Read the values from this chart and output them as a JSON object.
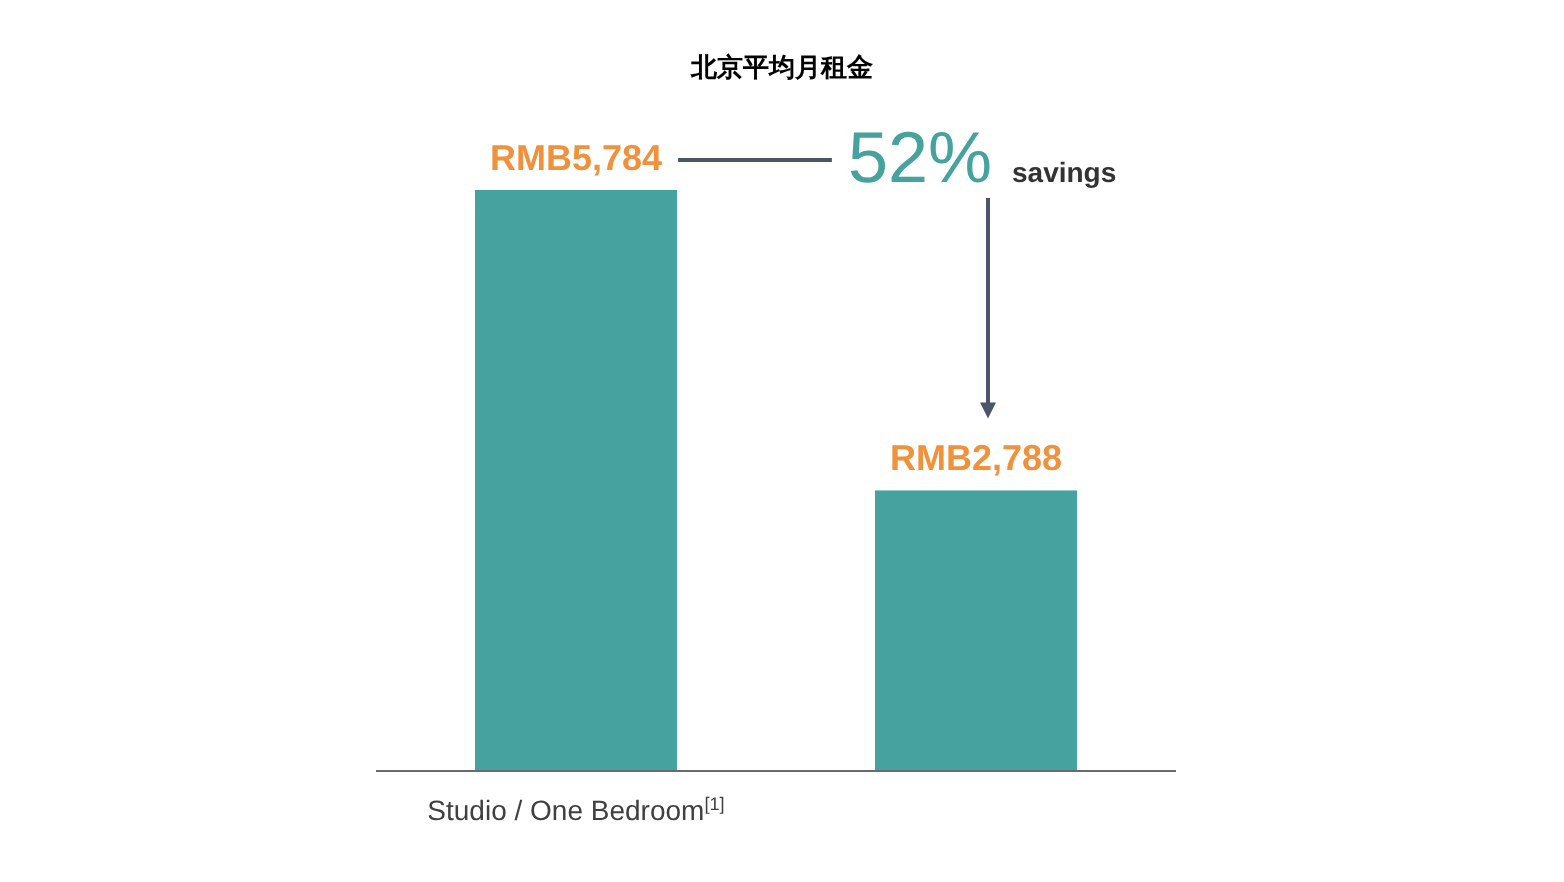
{
  "chart_data": {
    "type": "bar",
    "title": "北京平均月租金",
    "categories": [
      "Studio / One Bedroom$^{[1]}$",
      null
    ],
    "values": [
      5784,
      2788
    ],
    "value_labels": [
      "RMB5,784",
      "RMB2,788"
    ],
    "color": "#45a29e",
    "annotations": [
      "52%",
      "savings"
    ]
  }
}
